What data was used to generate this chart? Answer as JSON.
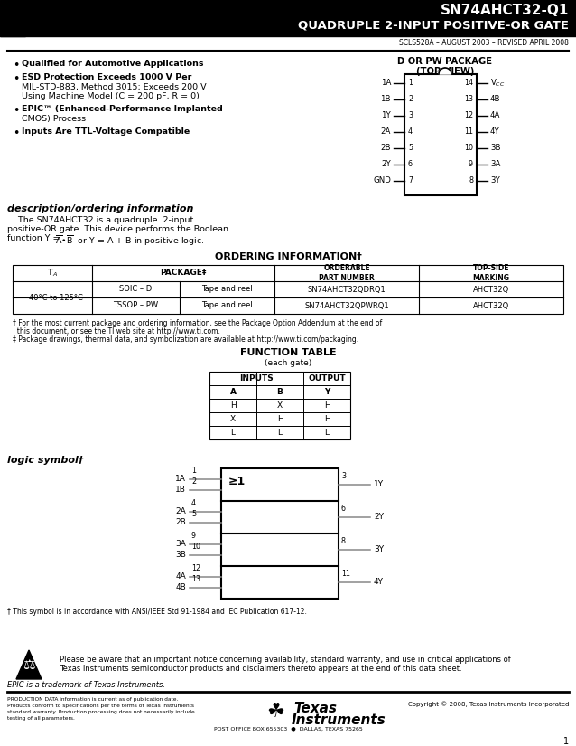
{
  "title_line1": "SN74AHCT32-Q1",
  "title_line2": "QUADRUPLE 2-INPUT POSITIVE-OR GATE",
  "subtitle": "SCLS528A – AUGUST 2003 – REVISED APRIL 2008",
  "bg_color": "#ffffff",
  "bullet_points": [
    [
      "Qualified for Automotive Applications"
    ],
    [
      "ESD Protection Exceeds 1000 V Per",
      "MIL-STD-883, Method 3015; Exceeds 200 V",
      "Using Machine Model (C = 200 pF, R = 0)"
    ],
    [
      "EPIC™ (Enhanced-Performance Implanted",
      "CMOS) Process"
    ],
    [
      "Inputs Are TTL-Voltage Compatible"
    ]
  ],
  "bullet_bold_first": true,
  "package_title": "D OR PW PACKAGE",
  "package_subtitle": "(TOP VIEW)",
  "pin_left": [
    "1A",
    "1B",
    "1Y",
    "2A",
    "2B",
    "2Y",
    "GND"
  ],
  "pin_left_num": [
    "1",
    "2",
    "3",
    "4",
    "5",
    "6",
    "7"
  ],
  "pin_right_num": [
    "14",
    "13",
    "12",
    "11",
    "10",
    "9",
    "8"
  ],
  "pin_right": [
    "V_CC",
    "4B",
    "4A",
    "4Y",
    "3B",
    "3A",
    "3Y"
  ],
  "desc_title": "description/ordering information",
  "ordering_title": "ORDERING INFORMATION†",
  "ordering_temp": "−40°C to 125°C",
  "ordering_rows": [
    [
      "SOIC – D",
      "Tape and reel",
      "SN74AHCT32QDRQ1",
      "AHCT32Q"
    ],
    [
      "TSSOP – PW",
      "Tape and reel",
      "SN74AHCT32QPWRQ1",
      "AHCT32Q"
    ]
  ],
  "footnote1": "† For the most current package and ordering information, see the Package Option Addendum at the end of",
  "footnote1b": "  this document, or see the TI web site at http://www.ti.com.",
  "footnote2": "‡ Package drawings, thermal data, and symbolization are available at http://www.ti.com/packaging.",
  "function_title": "FUNCTION TABLE",
  "function_subtitle": "(each gate)",
  "function_rows": [
    [
      "H",
      "X",
      "H"
    ],
    [
      "X",
      "H",
      "H"
    ],
    [
      "L",
      "L",
      "L"
    ]
  ],
  "logic_title": "logic symbol†",
  "logic_groups": [
    {
      "inputs": [
        "1A",
        "1B"
      ],
      "pins": [
        "1",
        "2"
      ],
      "output": "1Y",
      "out_pin": "3"
    },
    {
      "inputs": [
        "2A",
        "2B"
      ],
      "pins": [
        "4",
        "5"
      ],
      "output": "2Y",
      "out_pin": "6"
    },
    {
      "inputs": [
        "3A",
        "3B"
      ],
      "pins": [
        "9",
        "10"
      ],
      "output": "3Y",
      "out_pin": "8"
    },
    {
      "inputs": [
        "4A",
        "4B"
      ],
      "pins": [
        "12",
        "13"
      ],
      "output": "4Y",
      "out_pin": "11"
    }
  ],
  "logic_gate_symbol": "≥1",
  "logic_footnote": "† This symbol is in accordance with ANSI/IEEE Std 91-1984 and IEC Publication 617-12.",
  "footer_notice_line1": "Please be aware that an important notice concerning availability, standard warranty, and use in critical applications of",
  "footer_notice_line2": "Texas Instruments semiconductor products and disclaimers thereto appears at the end of this data sheet.",
  "epic_tm": "EPIC is a trademark of Texas Instruments.",
  "prod_text_lines": [
    "PRODUCTION DATA information is current as of publication date.",
    "Products conform to specifications per the terms of Texas Instruments",
    "standard warranty. Production processing does not necessarily include",
    "testing of all parameters."
  ],
  "copyright": "Copyright © 2008, Texas Instruments Incorporated",
  "ti_name_line1": "Texas",
  "ti_name_line2": "Instruments",
  "ti_address": "POST OFFICE BOX 655303  ●  DALLAS, TEXAS 75265",
  "page_num": "1"
}
